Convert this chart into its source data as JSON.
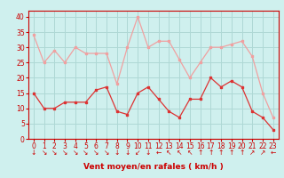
{
  "x": [
    0,
    1,
    2,
    3,
    4,
    5,
    6,
    7,
    8,
    9,
    10,
    11,
    12,
    13,
    14,
    15,
    16,
    17,
    18,
    19,
    20,
    21,
    22,
    23
  ],
  "avg": [
    15,
    10,
    10,
    12,
    12,
    12,
    16,
    17,
    9,
    8,
    15,
    17,
    13,
    9,
    7,
    13,
    13,
    20,
    17,
    19,
    17,
    9,
    7,
    3
  ],
  "gust": [
    34,
    25,
    29,
    25,
    30,
    28,
    28,
    28,
    18,
    30,
    40,
    30,
    32,
    32,
    26,
    20,
    25,
    30,
    30,
    31,
    32,
    27,
    15,
    7
  ],
  "arrow_labels": [
    "↓",
    "↘",
    "↘",
    "↘",
    "↘",
    "↘",
    "↘",
    "↘",
    "↓",
    "↓",
    "↙",
    "↓",
    "←",
    "↖",
    "↖",
    "↖",
    "↑",
    "↑",
    "↑",
    "↑",
    "↑",
    "↗",
    "↗",
    "←"
  ],
  "background_color": "#cff0ee",
  "grid_color": "#aed8d5",
  "line_avg_color": "#dd3333",
  "line_gust_color": "#f0a0a0",
  "xlabel": "Vent moyen/en rafales ( km/h )",
  "ylim": [
    0,
    42
  ],
  "yticks": [
    0,
    5,
    10,
    15,
    20,
    25,
    30,
    35,
    40
  ],
  "xlabel_color": "#cc0000",
  "tick_color": "#cc0000",
  "label_fontsize": 6.5,
  "tick_fontsize": 5.5,
  "arrow_fontsize": 5.5
}
